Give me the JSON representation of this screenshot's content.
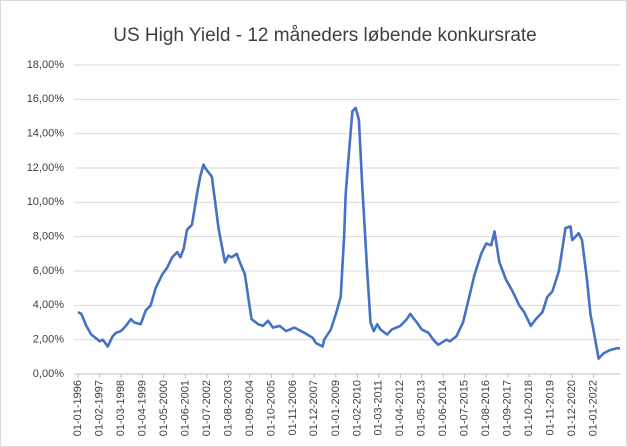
{
  "chart_data": {
    "type": "line",
    "title": "US High Yield - 12 måneders løbende konkursrate",
    "x": [
      "1996-01-01",
      "1996-03-01",
      "1996-06-01",
      "1996-09-01",
      "1997-01-01",
      "1997-02-01",
      "1997-04-01",
      "1997-07-01",
      "1997-10-01",
      "1997-12-01",
      "1998-03-01",
      "1998-06-01",
      "1998-09-01",
      "1998-11-01",
      "1999-03-01",
      "1999-06-01",
      "1999-09-01",
      "1999-12-01",
      "2000-04-01",
      "2000-07-01",
      "2000-10-01",
      "2001-01-01",
      "2001-03-01",
      "2001-05-01",
      "2001-07-01",
      "2001-10-01",
      "2002-01-01",
      "2002-03-01",
      "2002-05-01",
      "2002-06-01",
      "2002-10-01",
      "2002-12-01",
      "2003-02-01",
      "2003-04-01",
      "2003-06-01",
      "2003-08-01",
      "2003-10-01",
      "2004-01-01",
      "2004-03-01",
      "2004-06-01",
      "2004-08-01",
      "2004-10-01",
      "2005-02-01",
      "2005-05-01",
      "2005-08-01",
      "2005-11-01",
      "2006-03-01",
      "2006-07-01",
      "2006-12-01",
      "2007-06-01",
      "2007-11-01",
      "2008-01-01",
      "2008-05-01",
      "2008-06-01",
      "2008-10-01",
      "2009-01-01",
      "2009-04-01",
      "2009-06-01",
      "2009-07-01",
      "2009-09-01",
      "2009-11-01",
      "2010-01-01",
      "2010-03-01",
      "2010-05-01",
      "2010-08-01",
      "2010-10-01",
      "2010-12-01",
      "2011-02-01",
      "2011-04-01",
      "2011-08-01",
      "2011-11-01",
      "2012-04-01",
      "2012-08-01",
      "2012-10-01",
      "2013-02-01",
      "2013-05-01",
      "2013-09-01",
      "2013-12-01",
      "2014-03-01",
      "2014-08-01",
      "2014-10-01",
      "2015-02-01",
      "2015-06-01",
      "2015-09-01",
      "2016-01-01",
      "2016-05-01",
      "2016-08-01",
      "2016-11-01",
      "2017-01-01",
      "2017-04-01",
      "2017-08-01",
      "2017-12-01",
      "2018-04-01",
      "2018-07-01",
      "2018-11-01",
      "2019-02-01",
      "2019-06-01",
      "2019-09-01",
      "2019-12-01",
      "2020-04-01",
      "2020-08-01",
      "2020-11-01",
      "2020-12-01",
      "2021-04-01",
      "2021-06-01",
      "2021-09-01",
      "2021-11-01",
      "2022-01-01",
      "2022-04-01",
      "2022-07-01",
      "2022-11-01",
      "2023-03-01",
      "2023-05-01"
    ],
    "series": [
      {
        "color": "#4472c4",
        "values": [
          3.6,
          3.5,
          2.8,
          2.3,
          2.0,
          1.9,
          2.0,
          1.6,
          2.2,
          2.4,
          2.5,
          2.8,
          3.2,
          3.0,
          2.9,
          3.7,
          4.0,
          5.0,
          5.8,
          6.2,
          6.8,
          7.1,
          6.8,
          7.3,
          8.4,
          8.7,
          10.5,
          11.5,
          12.2,
          12.0,
          11.5,
          10.0,
          8.5,
          7.5,
          6.5,
          6.9,
          6.8,
          7.0,
          6.5,
          5.8,
          4.5,
          3.2,
          2.9,
          2.8,
          3.1,
          2.7,
          2.8,
          2.5,
          2.7,
          2.4,
          2.1,
          1.8,
          1.6,
          2.0,
          2.6,
          3.5,
          4.5,
          8.0,
          10.5,
          13.0,
          15.3,
          15.5,
          14.8,
          11.0,
          6.0,
          3.0,
          2.5,
          2.9,
          2.6,
          2.3,
          2.6,
          2.8,
          3.2,
          3.5,
          3.0,
          2.6,
          2.4,
          2.0,
          1.7,
          2.0,
          1.9,
          2.2,
          3.0,
          4.2,
          5.8,
          7.0,
          7.6,
          7.5,
          8.3,
          6.5,
          5.5,
          4.8,
          4.0,
          3.6,
          2.8,
          3.2,
          3.6,
          4.5,
          4.8,
          6.0,
          8.5,
          8.6,
          7.8,
          8.2,
          7.8,
          5.5,
          3.5,
          2.5,
          0.9,
          1.2,
          1.4,
          1.5,
          1.5
        ]
      }
    ],
    "xlim": [
      "1996-01-01",
      "2023-05-01"
    ],
    "xticks": [
      {
        "value": "1996-01-01",
        "label": "01-01-1996"
      },
      {
        "value": "1997-02-01",
        "label": "01-02-1997"
      },
      {
        "value": "1998-03-01",
        "label": "01-03-1998"
      },
      {
        "value": "1999-04-01",
        "label": "01-04-1999"
      },
      {
        "value": "2000-05-01",
        "label": "01-05-2000"
      },
      {
        "value": "2001-06-01",
        "label": "01-06-2001"
      },
      {
        "value": "2002-07-01",
        "label": "01-07-2002"
      },
      {
        "value": "2003-08-01",
        "label": "01-08-2003"
      },
      {
        "value": "2004-09-01",
        "label": "01-09-2004"
      },
      {
        "value": "2005-10-01",
        "label": "01-10-2005"
      },
      {
        "value": "2006-11-01",
        "label": "01-11-2006"
      },
      {
        "value": "2007-12-01",
        "label": "01-12-2007"
      },
      {
        "value": "2009-01-01",
        "label": "01-01-2009"
      },
      {
        "value": "2010-02-01",
        "label": "01-02-2010"
      },
      {
        "value": "2011-03-01",
        "label": "01-03-2011"
      },
      {
        "value": "2012-04-01",
        "label": "01-04-2012"
      },
      {
        "value": "2013-05-01",
        "label": "01-05-2013"
      },
      {
        "value": "2014-06-01",
        "label": "01-06-2014"
      },
      {
        "value": "2015-07-01",
        "label": "01-07-2015"
      },
      {
        "value": "2016-08-01",
        "label": "01-08-2016"
      },
      {
        "value": "2017-09-01",
        "label": "01-09-2017"
      },
      {
        "value": "2018-10-01",
        "label": "01-10-2018"
      },
      {
        "value": "2019-11-01",
        "label": "01-11-2019"
      },
      {
        "value": "2020-12-01",
        "label": "01-12-2020"
      },
      {
        "value": "2022-01-01",
        "label": "01-01-2022"
      }
    ],
    "ylim": [
      0,
      18
    ],
    "yticks": [
      {
        "value": 0,
        "label": "0,00%"
      },
      {
        "value": 2,
        "label": "2,00%"
      },
      {
        "value": 4,
        "label": "4,00%"
      },
      {
        "value": 6,
        "label": "6,00%"
      },
      {
        "value": 8,
        "label": "8,00%"
      },
      {
        "value": 10,
        "label": "10,00%"
      },
      {
        "value": 12,
        "label": "12,00%"
      },
      {
        "value": 14,
        "label": "14,00%"
      },
      {
        "value": 16,
        "label": "16,00%"
      },
      {
        "value": 18,
        "label": "18,00%"
      }
    ],
    "grid": true
  }
}
